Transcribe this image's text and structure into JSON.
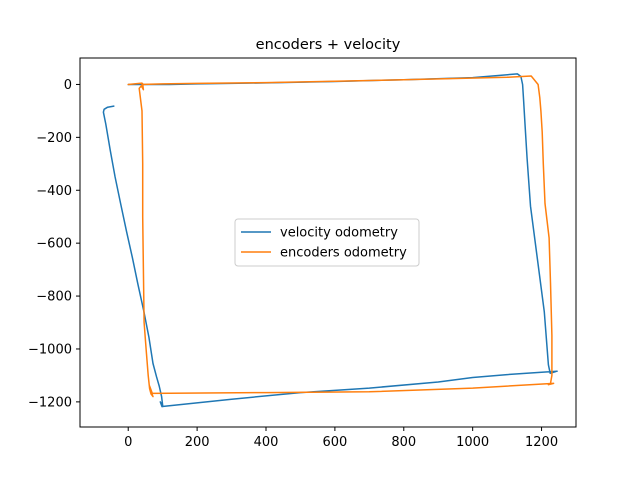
{
  "chart_data": {
    "type": "line",
    "title": "encoders + velocity",
    "xlabel": "",
    "ylabel": "",
    "xlim": [
      -140,
      1300
    ],
    "ylim": [
      -1295,
      100
    ],
    "xticks": [
      0,
      200,
      400,
      600,
      800,
      1000,
      1200
    ],
    "xtick_labels": [
      "0",
      "200",
      "400",
      "600",
      "800",
      "1000",
      "1200"
    ],
    "yticks": [
      0,
      -200,
      -400,
      -600,
      -800,
      -1000,
      -1200
    ],
    "ytick_labels": [
      "0",
      "−200",
      "−400",
      "−600",
      "−800",
      "−1000",
      "−1200"
    ],
    "grid": false,
    "legend_position": "center",
    "series": [
      {
        "name": "velocity odometry",
        "color": "#1f77b4",
        "x": [
          -42,
          -60,
          -70,
          -72,
          -65,
          -52,
          -38,
          -22,
          -5,
          12,
          28,
          45,
          60,
          72,
          82,
          90,
          97,
          100,
          93,
          98,
          102,
          300,
          500,
          700,
          900,
          1000,
          1100,
          1200,
          1245,
          1225,
          1220,
          1208,
          1188,
          1168,
          1158,
          1152,
          1148,
          1145,
          1140,
          1130,
          1000,
          800,
          600,
          400,
          200,
          120,
          40,
          0
        ],
        "y": [
          -82,
          -86,
          -94,
          -105,
          -150,
          -250,
          -350,
          -450,
          -555,
          -655,
          -755,
          -855,
          -955,
          -1055,
          -1105,
          -1140,
          -1180,
          -1215,
          -1200,
          -1218,
          -1217,
          -1190,
          -1165,
          -1148,
          -1125,
          -1108,
          -1097,
          -1088,
          -1084,
          -1092,
          -1060,
          -860,
          -660,
          -460,
          -280,
          -150,
          -60,
          0,
          30,
          40,
          26,
          18,
          11,
          6,
          2,
          0,
          0,
          0
        ]
      },
      {
        "name": "encoders odometry",
        "color": "#ff7f0e",
        "x": [
          0,
          40,
          42,
          44,
          38,
          32,
          40,
          42,
          42,
          44,
          46,
          52,
          58,
          62,
          66,
          72,
          66,
          62,
          70,
          400,
          700,
          1000,
          1235,
          1220,
          1226,
          1230,
          1230,
          1226,
          1222,
          1210,
          1205,
          1202,
          1198,
          1195,
          1190,
          1170,
          1100,
          800,
          600,
          400,
          200,
          100,
          60,
          40
        ],
        "y": [
          0,
          5,
          2,
          -20,
          -5,
          -15,
          -100,
          -300,
          -500,
          -700,
          -900,
          -1000,
          -1100,
          -1150,
          -1170,
          -1180,
          -1160,
          -1140,
          -1168,
          -1165,
          -1162,
          -1148,
          -1130,
          -1135,
          -1130,
          -1100,
          -950,
          -750,
          -580,
          -450,
          -300,
          -180,
          -100,
          -50,
          0,
          32,
          27,
          18,
          12,
          7,
          4,
          2,
          1,
          0
        ]
      }
    ]
  }
}
